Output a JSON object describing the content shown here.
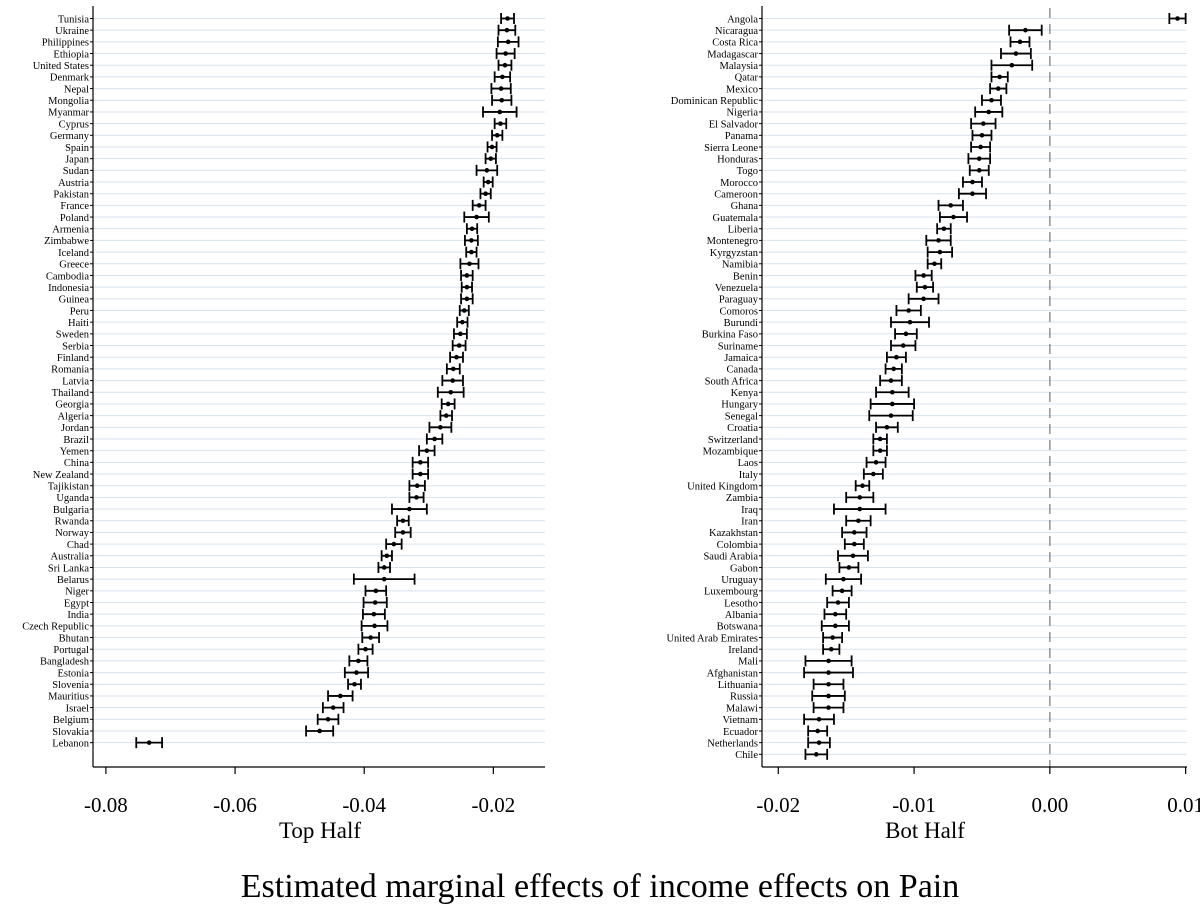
{
  "caption": "Estimated marginal effects of income effects on Pain",
  "chart_data": [
    {
      "type": "scatter",
      "subtype": "coefficient-plot-with-95ci",
      "xlabel": "Top Half",
      "xlim": [
        -0.082,
        -0.012
      ],
      "xticks": [
        -0.08,
        -0.06,
        -0.04,
        -0.02
      ],
      "xtick_labels": [
        "-0.08",
        "-0.06",
        "-0.04",
        "-0.02"
      ],
      "horizontal_grid": true,
      "zero_reference_line": false,
      "rows": [
        {
          "label": "Tunisia",
          "est": -0.0178,
          "lo": -0.0188,
          "hi": -0.0168
        },
        {
          "label": "Ukraine",
          "est": -0.0179,
          "lo": -0.0192,
          "hi": -0.0166
        },
        {
          "label": "Philippines",
          "est": -0.0177,
          "lo": -0.0193,
          "hi": -0.0161
        },
        {
          "label": "Ethiopia",
          "est": -0.0181,
          "lo": -0.0195,
          "hi": -0.0167
        },
        {
          "label": "United States",
          "est": -0.0182,
          "lo": -0.0192,
          "hi": -0.0172
        },
        {
          "label": "Denmark",
          "est": -0.0186,
          "lo": -0.0198,
          "hi": -0.0174
        },
        {
          "label": "Nepal",
          "est": -0.0188,
          "lo": -0.0203,
          "hi": -0.0173
        },
        {
          "label": "Mongolia",
          "est": -0.0187,
          "lo": -0.0202,
          "hi": -0.0172
        },
        {
          "label": "Myanmar",
          "est": -0.019,
          "lo": -0.0216,
          "hi": -0.0164
        },
        {
          "label": "Cyprus",
          "est": -0.0189,
          "lo": -0.0198,
          "hi": -0.018
        },
        {
          "label": "Germany",
          "est": -0.0194,
          "lo": -0.0202,
          "hi": -0.0186
        },
        {
          "label": "Spain",
          "est": -0.0202,
          "lo": -0.0209,
          "hi": -0.0195
        },
        {
          "label": "Japan",
          "est": -0.0204,
          "lo": -0.0212,
          "hi": -0.0196
        },
        {
          "label": "Sudan",
          "est": -0.021,
          "lo": -0.0226,
          "hi": -0.0194
        },
        {
          "label": "Austria",
          "est": -0.0208,
          "lo": -0.0215,
          "hi": -0.0201
        },
        {
          "label": "Pakistan",
          "est": -0.0212,
          "lo": -0.022,
          "hi": -0.0204
        },
        {
          "label": "France",
          "est": -0.0222,
          "lo": -0.0232,
          "hi": -0.0212
        },
        {
          "label": "Poland",
          "est": -0.0226,
          "lo": -0.0245,
          "hi": -0.0207
        },
        {
          "label": "Armenia",
          "est": -0.0233,
          "lo": -0.0241,
          "hi": -0.0225
        },
        {
          "label": "Zimbabwe",
          "est": -0.0234,
          "lo": -0.0244,
          "hi": -0.0224
        },
        {
          "label": "Iceland",
          "est": -0.0234,
          "lo": -0.0242,
          "hi": -0.0226
        },
        {
          "label": "Greece",
          "est": -0.0237,
          "lo": -0.0251,
          "hi": -0.0223
        },
        {
          "label": "Cambodia",
          "est": -0.0241,
          "lo": -0.025,
          "hi": -0.0232
        },
        {
          "label": "Indonesia",
          "est": -0.0241,
          "lo": -0.0249,
          "hi": -0.0233
        },
        {
          "label": "Guinea",
          "est": -0.0241,
          "lo": -0.025,
          "hi": -0.0232
        },
        {
          "label": "Peru",
          "est": -0.0245,
          "lo": -0.0252,
          "hi": -0.0238
        },
        {
          "label": "Haiti",
          "est": -0.0248,
          "lo": -0.0256,
          "hi": -0.024
        },
        {
          "label": "Sweden",
          "est": -0.0251,
          "lo": -0.0261,
          "hi": -0.0241
        },
        {
          "label": "Serbia",
          "est": -0.0253,
          "lo": -0.0263,
          "hi": -0.0243
        },
        {
          "label": "Finland",
          "est": -0.0257,
          "lo": -0.0267,
          "hi": -0.0247
        },
        {
          "label": "Romania",
          "est": -0.0262,
          "lo": -0.0272,
          "hi": -0.0252
        },
        {
          "label": "Latvia",
          "est": -0.0263,
          "lo": -0.0279,
          "hi": -0.0247
        },
        {
          "label": "Thailand",
          "est": -0.0266,
          "lo": -0.0286,
          "hi": -0.0246
        },
        {
          "label": "Georgia",
          "est": -0.027,
          "lo": -0.028,
          "hi": -0.026
        },
        {
          "label": "Algeria",
          "est": -0.0273,
          "lo": -0.0282,
          "hi": -0.0264
        },
        {
          "label": "Jordan",
          "est": -0.0282,
          "lo": -0.0299,
          "hi": -0.0265
        },
        {
          "label": "Brazil",
          "est": -0.0291,
          "lo": -0.0303,
          "hi": -0.0279
        },
        {
          "label": "Yemen",
          "est": -0.0303,
          "lo": -0.0315,
          "hi": -0.0291
        },
        {
          "label": "China",
          "est": -0.0313,
          "lo": -0.0325,
          "hi": -0.0301
        },
        {
          "label": "New Zealand",
          "est": -0.0313,
          "lo": -0.0325,
          "hi": -0.0301
        },
        {
          "label": "Tajikistan",
          "est": -0.0318,
          "lo": -0.033,
          "hi": -0.0306
        },
        {
          "label": "Uganda",
          "est": -0.0319,
          "lo": -0.033,
          "hi": -0.0308
        },
        {
          "label": "Bulgaria",
          "est": -0.033,
          "lo": -0.0357,
          "hi": -0.0303
        },
        {
          "label": "Rwanda",
          "est": -0.034,
          "lo": -0.0349,
          "hi": -0.0331
        },
        {
          "label": "Norway",
          "est": -0.034,
          "lo": -0.0352,
          "hi": -0.0328
        },
        {
          "label": "Chad",
          "est": -0.0354,
          "lo": -0.0366,
          "hi": -0.0342
        },
        {
          "label": "Australia",
          "est": -0.0365,
          "lo": -0.0373,
          "hi": -0.0357
        },
        {
          "label": "Sri Lanka",
          "est": -0.0369,
          "lo": -0.0378,
          "hi": -0.036
        },
        {
          "label": "Belarus",
          "est": -0.0369,
          "lo": -0.0416,
          "hi": -0.0322
        },
        {
          "label": "Niger",
          "est": -0.0382,
          "lo": -0.0398,
          "hi": -0.0366
        },
        {
          "label": "Egypt",
          "est": -0.0383,
          "lo": -0.0401,
          "hi": -0.0365
        },
        {
          "label": "India",
          "est": -0.0385,
          "lo": -0.0402,
          "hi": -0.0368
        },
        {
          "label": "Czech Republic",
          "est": -0.0384,
          "lo": -0.0404,
          "hi": -0.0364
        },
        {
          "label": "Bhutan",
          "est": -0.039,
          "lo": -0.0403,
          "hi": -0.0377
        },
        {
          "label": "Portugal",
          "est": -0.0398,
          "lo": -0.0409,
          "hi": -0.0387
        },
        {
          "label": "Bangladesh",
          "est": -0.0409,
          "lo": -0.0423,
          "hi": -0.0395
        },
        {
          "label": "Estonia",
          "est": -0.0412,
          "lo": -0.043,
          "hi": -0.0394
        },
        {
          "label": "Slovenia",
          "est": -0.0415,
          "lo": -0.0425,
          "hi": -0.0405
        },
        {
          "label": "Mauritius",
          "est": -0.0437,
          "lo": -0.0456,
          "hi": -0.0418
        },
        {
          "label": "Israel",
          "est": -0.0448,
          "lo": -0.0464,
          "hi": -0.0432
        },
        {
          "label": "Belgium",
          "est": -0.0456,
          "lo": -0.0472,
          "hi": -0.044
        },
        {
          "label": "Slovakia",
          "est": -0.0469,
          "lo": -0.049,
          "hi": -0.0448
        },
        {
          "label": "Lebanon",
          "est": -0.0733,
          "lo": -0.0753,
          "hi": -0.0713
        }
      ]
    },
    {
      "type": "scatter",
      "subtype": "coefficient-plot-with-95ci",
      "xlabel": "Bot Half",
      "xlim": [
        -0.0212,
        0.0101
      ],
      "xticks": [
        -0.02,
        -0.01,
        0.0,
        0.01
      ],
      "xtick_labels": [
        "-0.02",
        "-0.01",
        "0.00",
        "0.01"
      ],
      "horizontal_grid": true,
      "zero_reference_line": true,
      "rows": [
        {
          "label": "Angola",
          "est": 0.0094,
          "lo": 0.0088,
          "hi": 0.01
        },
        {
          "label": "Nicaragua",
          "est": -0.0018,
          "lo": -0.003,
          "hi": -0.0006
        },
        {
          "label": "Costa Rica",
          "est": -0.0022,
          "lo": -0.0029,
          "hi": -0.0015
        },
        {
          "label": "Madagascar",
          "est": -0.0025,
          "lo": -0.0036,
          "hi": -0.0014
        },
        {
          "label": "Malaysia",
          "est": -0.0028,
          "lo": -0.0043,
          "hi": -0.0013
        },
        {
          "label": "Qatar",
          "est": -0.0037,
          "lo": -0.0043,
          "hi": -0.0031
        },
        {
          "label": "Mexico",
          "est": -0.0038,
          "lo": -0.0044,
          "hi": -0.0032
        },
        {
          "label": "Dominican Republic",
          "est": -0.0043,
          "lo": -0.005,
          "hi": -0.0036
        },
        {
          "label": "Nigeria",
          "est": -0.0045,
          "lo": -0.0055,
          "hi": -0.0035
        },
        {
          "label": "El Salvador",
          "est": -0.0049,
          "lo": -0.0058,
          "hi": -0.004
        },
        {
          "label": "Panama",
          "est": -0.005,
          "lo": -0.0057,
          "hi": -0.0043
        },
        {
          "label": "Sierra Leone",
          "est": -0.0051,
          "lo": -0.0058,
          "hi": -0.0044
        },
        {
          "label": "Honduras",
          "est": -0.0052,
          "lo": -0.006,
          "hi": -0.0044
        },
        {
          "label": "Togo",
          "est": -0.0052,
          "lo": -0.0059,
          "hi": -0.0045
        },
        {
          "label": "Morocco",
          "est": -0.0057,
          "lo": -0.0064,
          "hi": -0.005
        },
        {
          "label": "Cameroon",
          "est": -0.0057,
          "lo": -0.0067,
          "hi": -0.0047
        },
        {
          "label": "Ghana",
          "est": -0.0073,
          "lo": -0.0082,
          "hi": -0.0064
        },
        {
          "label": "Guatemala",
          "est": -0.0071,
          "lo": -0.0081,
          "hi": -0.0061
        },
        {
          "label": "Liberia",
          "est": -0.0078,
          "lo": -0.0083,
          "hi": -0.0073
        },
        {
          "label": "Montenegro",
          "est": -0.0082,
          "lo": -0.0091,
          "hi": -0.0073
        },
        {
          "label": "Kyrgyzstan",
          "est": -0.0081,
          "lo": -0.009,
          "hi": -0.0072
        },
        {
          "label": "Namibia",
          "est": -0.0085,
          "lo": -0.009,
          "hi": -0.008
        },
        {
          "label": "Benin",
          "est": -0.0093,
          "lo": -0.0099,
          "hi": -0.0087
        },
        {
          "label": "Venezuela",
          "est": -0.0092,
          "lo": -0.0098,
          "hi": -0.0086
        },
        {
          "label": "Paraguay",
          "est": -0.0093,
          "lo": -0.0104,
          "hi": -0.0082
        },
        {
          "label": "Comoros",
          "est": -0.0104,
          "lo": -0.0113,
          "hi": -0.0095
        },
        {
          "label": "Burundi",
          "est": -0.0103,
          "lo": -0.0117,
          "hi": -0.0089
        },
        {
          "label": "Burkina Faso",
          "est": -0.0106,
          "lo": -0.0114,
          "hi": -0.0098
        },
        {
          "label": "Suriname",
          "est": -0.0108,
          "lo": -0.0117,
          "hi": -0.0099
        },
        {
          "label": "Jamaica",
          "est": -0.0113,
          "lo": -0.012,
          "hi": -0.0106
        },
        {
          "label": "Canada",
          "est": -0.0115,
          "lo": -0.0121,
          "hi": -0.0109
        },
        {
          "label": "South Africa",
          "est": -0.0117,
          "lo": -0.0125,
          "hi": -0.0109
        },
        {
          "label": "Kenya",
          "est": -0.0116,
          "lo": -0.0128,
          "hi": -0.0104
        },
        {
          "label": "Hungary",
          "est": -0.0116,
          "lo": -0.0132,
          "hi": -0.01
        },
        {
          "label": "Senegal",
          "est": -0.0117,
          "lo": -0.0133,
          "hi": -0.0101
        },
        {
          "label": "Croatia",
          "est": -0.012,
          "lo": -0.0128,
          "hi": -0.0112
        },
        {
          "label": "Switzerland",
          "est": -0.0125,
          "lo": -0.013,
          "hi": -0.012
        },
        {
          "label": "Mozambique",
          "est": -0.0125,
          "lo": -0.013,
          "hi": -0.012
        },
        {
          "label": "Laos",
          "est": -0.0128,
          "lo": -0.0135,
          "hi": -0.0121
        },
        {
          "label": "Italy",
          "est": -0.013,
          "lo": -0.0137,
          "hi": -0.0123
        },
        {
          "label": "United Kingdom",
          "est": -0.0138,
          "lo": -0.0143,
          "hi": -0.0133
        },
        {
          "label": "Zambia",
          "est": -0.014,
          "lo": -0.015,
          "hi": -0.013
        },
        {
          "label": "Iraq",
          "est": -0.014,
          "lo": -0.0159,
          "hi": -0.0121
        },
        {
          "label": "Iran",
          "est": -0.0141,
          "lo": -0.015,
          "hi": -0.0132
        },
        {
          "label": "Kazakhstan",
          "est": -0.0144,
          "lo": -0.0153,
          "hi": -0.0135
        },
        {
          "label": "Colombia",
          "est": -0.0144,
          "lo": -0.0151,
          "hi": -0.0137
        },
        {
          "label": "Saudi Arabia",
          "est": -0.0145,
          "lo": -0.0156,
          "hi": -0.0134
        },
        {
          "label": "Gabon",
          "est": -0.0148,
          "lo": -0.0155,
          "hi": -0.0141
        },
        {
          "label": "Uruguay",
          "est": -0.0152,
          "lo": -0.0165,
          "hi": -0.0139
        },
        {
          "label": "Luxembourg",
          "est": -0.0153,
          "lo": -0.016,
          "hi": -0.0146
        },
        {
          "label": "Lesotho",
          "est": -0.0156,
          "lo": -0.0164,
          "hi": -0.0148
        },
        {
          "label": "Albania",
          "est": -0.0158,
          "lo": -0.0166,
          "hi": -0.015
        },
        {
          "label": "Botswana",
          "est": -0.0158,
          "lo": -0.0168,
          "hi": -0.0148
        },
        {
          "label": "United Arab Emirates",
          "est": -0.016,
          "lo": -0.0167,
          "hi": -0.0153
        },
        {
          "label": "Ireland",
          "est": -0.0161,
          "lo": -0.0167,
          "hi": -0.0155
        },
        {
          "label": "Mali",
          "est": -0.0163,
          "lo": -0.018,
          "hi": -0.0146
        },
        {
          "label": "Afghanistan",
          "est": -0.0163,
          "lo": -0.0181,
          "hi": -0.0145
        },
        {
          "label": "Lithuania",
          "est": -0.0163,
          "lo": -0.0174,
          "hi": -0.0152
        },
        {
          "label": "Russia",
          "est": -0.0163,
          "lo": -0.0175,
          "hi": -0.0151
        },
        {
          "label": "Malawi",
          "est": -0.0163,
          "lo": -0.0174,
          "hi": -0.0152
        },
        {
          "label": "Vietnam",
          "est": -0.017,
          "lo": -0.0181,
          "hi": -0.0159
        },
        {
          "label": "Ecuador",
          "est": -0.0171,
          "lo": -0.0178,
          "hi": -0.0164
        },
        {
          "label": "Netherlands",
          "est": -0.017,
          "lo": -0.0178,
          "hi": -0.0162
        },
        {
          "label": "Chile",
          "est": -0.0172,
          "lo": -0.018,
          "hi": -0.0164
        }
      ]
    }
  ]
}
